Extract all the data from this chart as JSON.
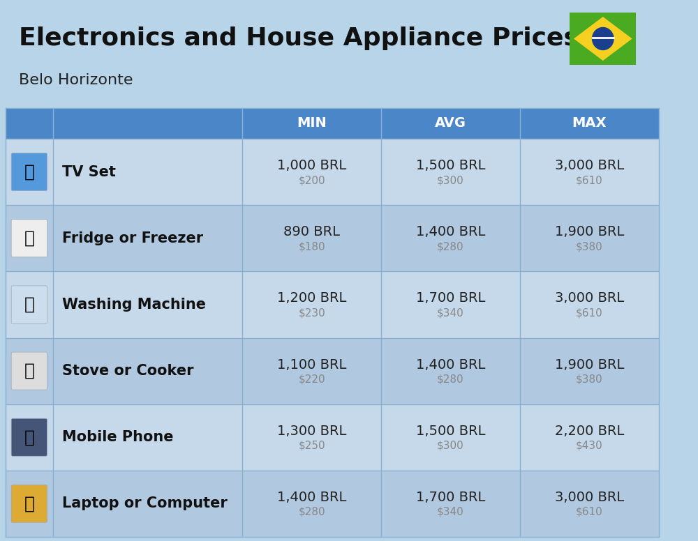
{
  "title": "Electronics and House Appliance Prices",
  "subtitle": "Belo Horizonte",
  "bg_color": "#b8d4e8",
  "header_color": "#4a86c8",
  "header_text_color": "#ffffff",
  "row_bg_light": "#c5d9ea",
  "row_bg_dark": "#b0c8e0",
  "item_name_color": "#111111",
  "price_brl_color": "#222222",
  "price_usd_color": "#888888",
  "col_sep_color": "#8ab0d0",
  "columns": [
    "MIN",
    "AVG",
    "MAX"
  ],
  "items": [
    {
      "name": "TV Set",
      "min_brl": "1,000 BRL",
      "min_usd": "$200",
      "avg_brl": "1,500 BRL",
      "avg_usd": "$300",
      "max_brl": "3,000 BRL",
      "max_usd": "$610"
    },
    {
      "name": "Fridge or Freezer",
      "min_brl": "890 BRL",
      "min_usd": "$180",
      "avg_brl": "1,400 BRL",
      "avg_usd": "$280",
      "max_brl": "1,900 BRL",
      "max_usd": "$380"
    },
    {
      "name": "Washing Machine",
      "min_brl": "1,200 BRL",
      "min_usd": "$230",
      "avg_brl": "1,700 BRL",
      "avg_usd": "$340",
      "max_brl": "3,000 BRL",
      "max_usd": "$610"
    },
    {
      "name": "Stove or Cooker",
      "min_brl": "1,100 BRL",
      "min_usd": "$220",
      "avg_brl": "1,400 BRL",
      "avg_usd": "$280",
      "max_brl": "1,900 BRL",
      "max_usd": "$380"
    },
    {
      "name": "Mobile Phone",
      "min_brl": "1,300 BRL",
      "min_usd": "$250",
      "avg_brl": "1,500 BRL",
      "avg_usd": "$300",
      "max_brl": "2,200 BRL",
      "max_usd": "$430"
    },
    {
      "name": "Laptop or Computer",
      "min_brl": "1,400 BRL",
      "min_usd": "$280",
      "avg_brl": "1,700 BRL",
      "avg_usd": "$340",
      "max_brl": "3,000 BRL",
      "max_usd": "$610"
    }
  ],
  "flag_green": "#4aaa22",
  "flag_yellow": "#f5d020",
  "flag_blue": "#1a3f8f",
  "title_fontsize": 26,
  "subtitle_fontsize": 16,
  "header_fontsize": 14,
  "name_fontsize": 15,
  "price_brl_fontsize": 14,
  "price_usd_fontsize": 11
}
